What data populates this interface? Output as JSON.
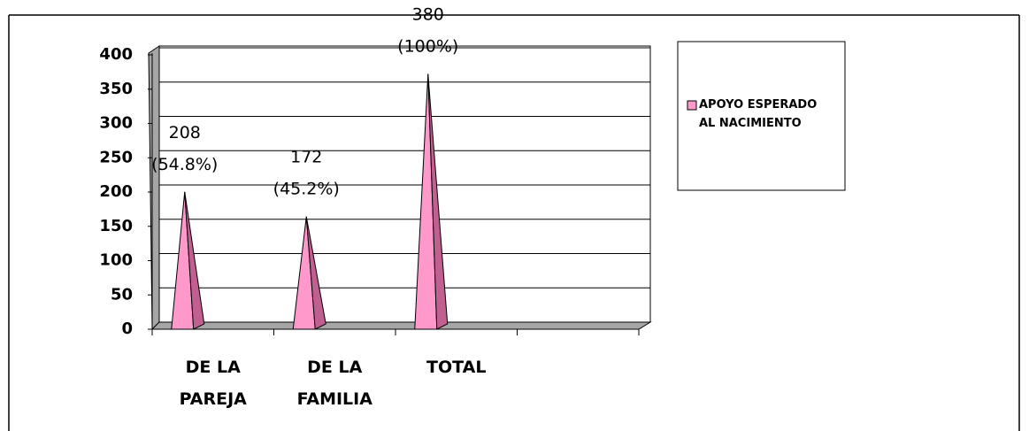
{
  "chart_data": {
    "type": "pyramid",
    "categories": [
      "DE LA\nPAREJA",
      "DE LA\nFAMILIA",
      "TOTAL",
      null
    ],
    "series": [
      {
        "name": "APOYO ESPERADO AL NACIMIENTO",
        "color": "#ff99cc",
        "values": [
          208,
          172,
          380,
          null
        ],
        "value_labels": [
          "208\n(54.8%)",
          "172\n(45.2%)",
          "380\n(100%)",
          null
        ]
      }
    ],
    "ylim": [
      0,
      400
    ],
    "yticks": [
      0,
      50,
      100,
      150,
      200,
      250,
      300,
      350,
      400
    ],
    "grid": true
  }
}
